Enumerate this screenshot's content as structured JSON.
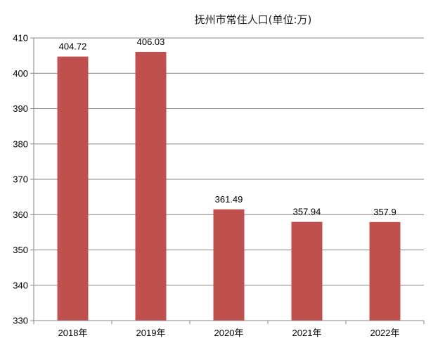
{
  "chart_data": {
    "type": "bar",
    "title": "抚州市常住人口(单位:万)",
    "categories": [
      "2018年",
      "2019年",
      "2020年",
      "2021年",
      "2022年"
    ],
    "values": [
      404.72,
      406.03,
      361.49,
      357.94,
      357.9
    ],
    "data_labels": [
      "404.72",
      "406.03",
      "361.49",
      "357.94",
      "357.9"
    ],
    "ylim": [
      330,
      410
    ],
    "yticks": [
      330,
      340,
      350,
      360,
      370,
      380,
      390,
      400,
      410
    ],
    "ytick_labels": [
      "330",
      "340",
      "350",
      "360",
      "370",
      "380",
      "390",
      "400",
      "410"
    ],
    "grid": true,
    "legend": "none",
    "bar_color": "#c0504d",
    "grid_color": "#868686"
  }
}
